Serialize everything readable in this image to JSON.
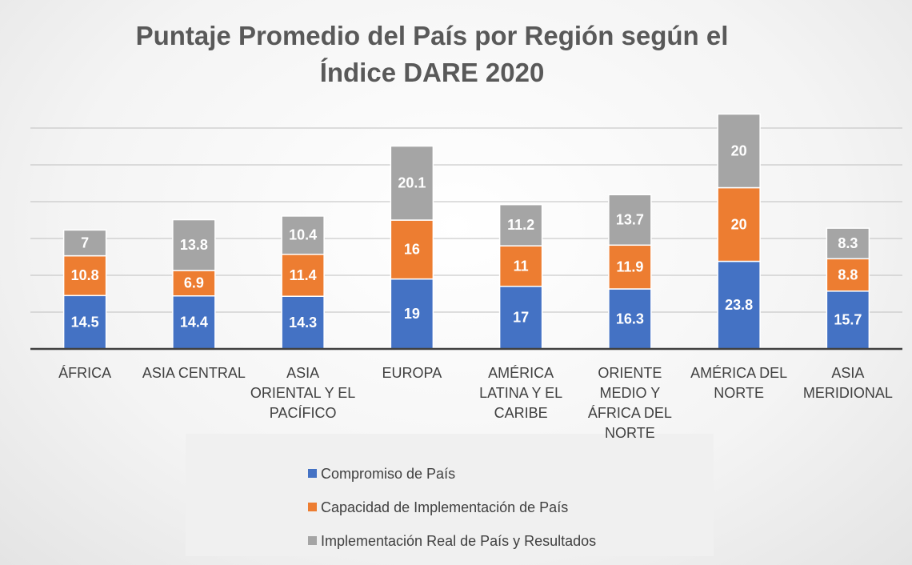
{
  "chart_data": {
    "type": "stacked_bar",
    "title": "Puntaje Promedio del País por Región según el Índice DARE 2020",
    "categories": [
      "ÁFRICA",
      "ASIA CENTRAL",
      "ASIA ORIENTAL Y EL PACÍFICO",
      "EUROPA",
      "AMÉRICA LATINA Y EL CARIBE",
      "ORIENTE MEDIO Y ÁFRICA DEL NORTE",
      "AMÉRICA DEL NORTE",
      "ASIA MERIDIONAL"
    ],
    "series": [
      {
        "name": "Compromiso de País",
        "color": "#4472c4",
        "values": [
          14.5,
          14.4,
          14.3,
          19,
          17,
          16.3,
          23.8,
          15.7
        ]
      },
      {
        "name": "Capacidad de Implementación de País",
        "color": "#ed7d31",
        "values": [
          10.8,
          6.9,
          11.4,
          16,
          11,
          11.9,
          20,
          8.8
        ]
      },
      {
        "name": "Implementación Real de País y Resultados",
        "color": "#a5a5a5",
        "values": [
          7,
          13.8,
          10.4,
          20.1,
          11.2,
          13.7,
          20,
          8.3
        ]
      }
    ],
    "ylim": [
      0,
      70
    ],
    "yticks": [
      0,
      10,
      20,
      30,
      40,
      50,
      60
    ],
    "grid": true,
    "legend": "bottom"
  }
}
